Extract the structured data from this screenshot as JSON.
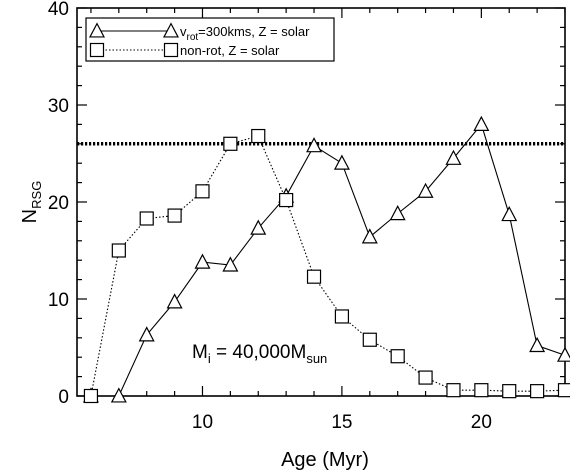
{
  "chart_data": {
    "type": "line",
    "title": "",
    "xlabel": "Age (Myr)",
    "ylabel_main": "N",
    "ylabel_sub": "RSG",
    "xlim": [
      5.5,
      23
    ],
    "ylim": [
      0,
      40
    ],
    "xticks": [
      10,
      15,
      20
    ],
    "yticks": [
      0,
      10,
      20,
      30,
      40
    ],
    "grid": false,
    "legend_position": "top-left",
    "reference_line": {
      "y": 26,
      "style": "dotted"
    },
    "annotation": {
      "main": "M",
      "sub1": "i",
      "mid": " = 40,000M",
      "sub2": "sun"
    },
    "series": [
      {
        "legend_prefix": "v",
        "legend_sub": "rot",
        "legend_suffix": "=300kms, Z = solar",
        "marker": "triangle",
        "line_style": "solid",
        "x": [
          6,
          7,
          8,
          9,
          10,
          11,
          12,
          13,
          14,
          15,
          16,
          17,
          18,
          19,
          20,
          21,
          22,
          23
        ],
        "y": [
          0,
          0,
          6.3,
          9.7,
          13.8,
          13.5,
          17.3,
          20.6,
          25.8,
          24,
          16.4,
          18.8,
          21.1,
          24.5,
          28,
          18.7,
          5.2,
          4.2
        ]
      },
      {
        "legend_label": "non-rot, Z = solar",
        "marker": "square",
        "line_style": "dotted",
        "x": [
          6,
          7,
          8,
          9,
          10,
          11,
          12,
          13,
          14,
          15,
          16,
          17,
          18,
          19,
          20,
          21,
          22,
          23
        ],
        "y": [
          0,
          15,
          18.3,
          18.6,
          21.1,
          26,
          26.8,
          20.2,
          12.3,
          8.2,
          5.8,
          4.1,
          1.9,
          0.6,
          0.6,
          0.5,
          0.5,
          0.6
        ]
      }
    ]
  }
}
